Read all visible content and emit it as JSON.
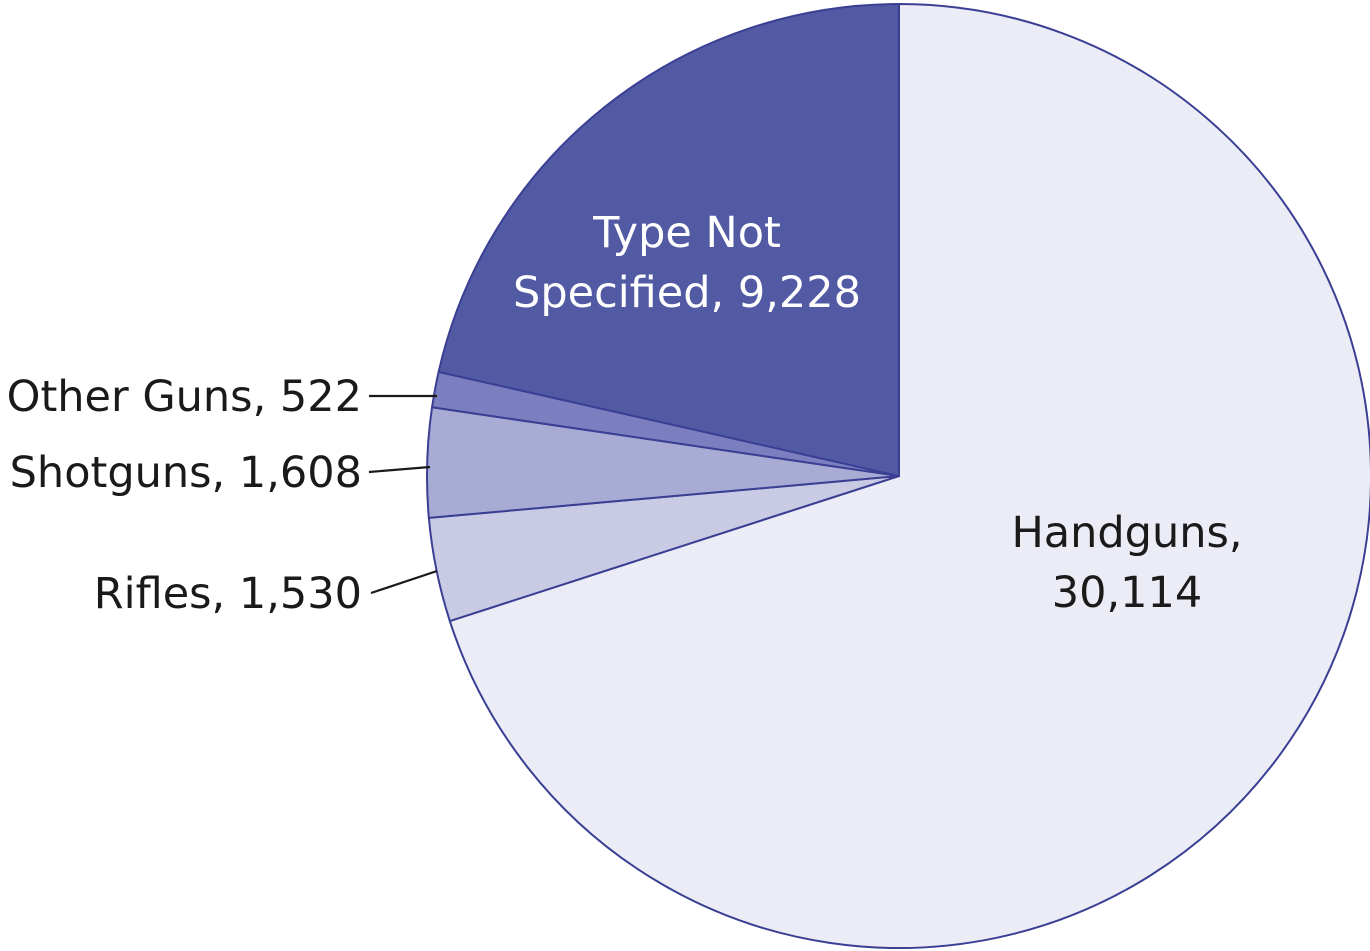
{
  "chart_data": {
    "type": "pie",
    "start_angle_deg": 0,
    "direction": "clockwise",
    "slices": [
      {
        "label": "Handguns",
        "value": 30114,
        "display": "30,114",
        "color": "#ebecf6"
      },
      {
        "label": "Rifles",
        "value": 1530,
        "display": "1,530",
        "color": "#c9cbe5"
      },
      {
        "label": "Shotguns",
        "value": 1608,
        "display": "1,608",
        "color": "#a8abd4"
      },
      {
        "label": "Other Guns",
        "value": 522,
        "display": "522",
        "color": "#7b7fc0"
      },
      {
        "label": "Type Not Specified",
        "value": 9228,
        "display": "9,228",
        "color": "#535aa4"
      }
    ],
    "labels": {
      "handguns": [
        "Handguns,",
        "30,114"
      ],
      "type_not_specified": [
        "Type Not",
        "Specified, 9,228"
      ],
      "other_guns": "Other Guns, 522",
      "shotguns": "Shotguns, 1,608",
      "rifles": "Rifles, 1,530"
    },
    "title": "",
    "legend": "none"
  }
}
